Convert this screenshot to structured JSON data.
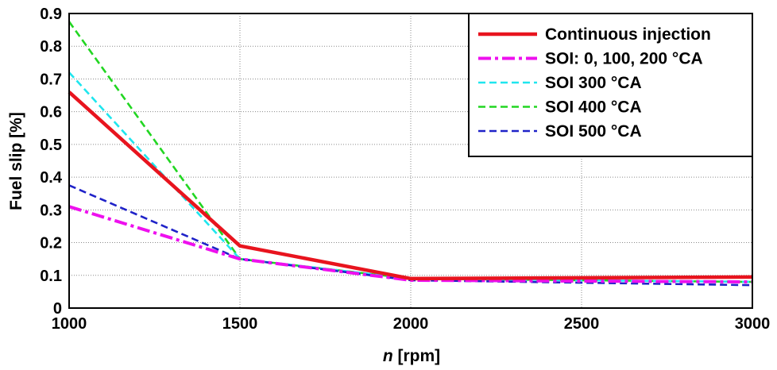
{
  "chart_data": {
    "type": "line",
    "xlabel_italic": "n",
    "xlabel_rest": " [rpm]",
    "ylabel": "Fuel slip [%]",
    "xlim": [
      1000,
      3000
    ],
    "ylim": [
      0,
      0.9
    ],
    "x": [
      1000,
      1500,
      2000,
      3000
    ],
    "x_ticks": [
      "1000",
      "1500",
      "2000",
      "2500",
      "3000"
    ],
    "y_ticks": [
      "0",
      "0.1",
      "0.2",
      "0.3",
      "0.4",
      "0.5",
      "0.6",
      "0.7",
      "0.8",
      "0.9"
    ],
    "grid": true,
    "legend_position": "top-right",
    "series": [
      {
        "name": "Continuous injection",
        "values": [
          0.66,
          0.19,
          0.09,
          0.095
        ],
        "color": "#e8141e",
        "style": "solid"
      },
      {
        "name": "SOI: 0, 100, 200 °CA",
        "values": [
          0.31,
          0.15,
          0.085,
          0.08
        ],
        "color": "#ee10ee",
        "style": "dashdot"
      },
      {
        "name": "SOI 300 °CA",
        "values": [
          0.72,
          0.15,
          0.09,
          0.08
        ],
        "color": "#1fe6ee",
        "style": "dashed"
      },
      {
        "name": "SOI 400 °CA",
        "values": [
          0.875,
          0.15,
          0.09,
          0.08
        ],
        "color": "#22d622",
        "style": "dashed"
      },
      {
        "name": "SOI 500 °CA",
        "values": [
          0.375,
          0.15,
          0.085,
          0.07
        ],
        "color": "#1f22c8",
        "style": "dashed"
      }
    ]
  }
}
